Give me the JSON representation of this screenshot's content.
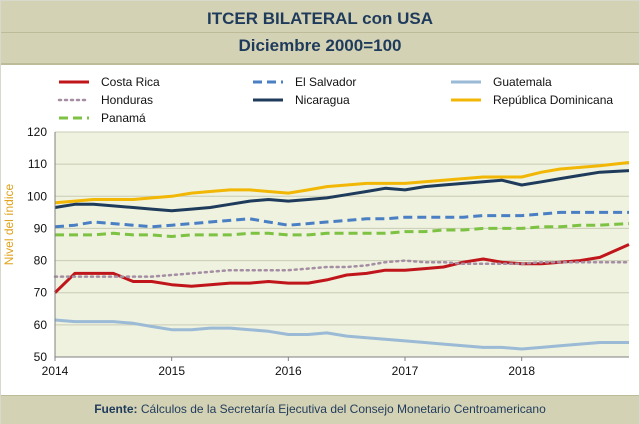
{
  "header": {
    "title": "ITCER BILATERAL con USA",
    "subtitle": "Diciembre 2000=100"
  },
  "footer": {
    "source_label": "Fuente:",
    "source_text": "Cálculos de la Secretaría Ejecutiva del Consejo Monetario Centroamericano"
  },
  "chart_data": {
    "type": "line",
    "title": "ITCER BILATERAL con USA",
    "subtitle": "Diciembre 2000=100",
    "ylabel": "Nivel del índice",
    "xlabel": "",
    "x_ticks": [
      "2014",
      "2015",
      "2016",
      "2017",
      "2018"
    ],
    "y_ticks": [
      50,
      60,
      70,
      80,
      90,
      100,
      110,
      120
    ],
    "ylim": [
      50,
      120
    ],
    "xlim": [
      2014.0,
      2018.92
    ],
    "grid": "horizontal",
    "legend_position": "top",
    "x": [
      2014.0,
      2014.17,
      2014.33,
      2014.5,
      2014.67,
      2014.83,
      2015.0,
      2015.17,
      2015.33,
      2015.5,
      2015.67,
      2015.83,
      2016.0,
      2016.17,
      2016.33,
      2016.5,
      2016.67,
      2016.83,
      2017.0,
      2017.17,
      2017.33,
      2017.5,
      2017.67,
      2017.83,
      2018.0,
      2018.17,
      2018.33,
      2018.5,
      2018.67,
      2018.92
    ],
    "series": [
      {
        "name": "Costa Rica",
        "color": "#c0161b",
        "dash": "solid",
        "values": [
          70,
          76,
          76,
          76,
          73.5,
          73.5,
          72.5,
          72,
          72.5,
          73,
          73,
          73.5,
          73,
          73,
          74,
          75.5,
          76,
          77,
          77,
          77.5,
          78,
          79.5,
          80.5,
          79.5,
          79,
          79,
          79.5,
          80,
          81,
          85
        ]
      },
      {
        "name": "El Salvador",
        "color": "#4a7fc4",
        "dash": "dashed",
        "values": [
          90.5,
          91,
          92,
          91.5,
          91,
          90.5,
          91,
          91.5,
          92,
          92.5,
          93,
          92,
          91,
          91.5,
          92,
          92.5,
          93,
          93,
          93.5,
          93.5,
          93.5,
          93.5,
          94,
          94,
          94,
          94.5,
          95,
          95,
          95,
          95
        ]
      },
      {
        "name": "Guatemala",
        "color": "#9bbad6",
        "dash": "solid",
        "values": [
          61.5,
          61,
          61,
          61,
          60.5,
          59.5,
          58.5,
          58.5,
          59,
          59,
          58.5,
          58,
          57,
          57,
          57.5,
          56.5,
          56,
          55.5,
          55,
          54.5,
          54,
          53.5,
          53,
          53,
          52.5,
          53,
          53.5,
          54,
          54.5,
          54.5
        ]
      },
      {
        "name": "Honduras",
        "color": "#a58ea3",
        "dash": "dotted",
        "values": [
          75,
          75,
          75,
          75,
          75,
          75,
          75.5,
          76,
          76.5,
          77,
          77,
          77,
          77,
          77.5,
          78,
          78,
          78.5,
          79.5,
          80,
          79.5,
          79.5,
          79,
          79,
          79,
          79,
          79.5,
          79.5,
          79.5,
          79.5,
          79.5
        ]
      },
      {
        "name": "Nicaragua",
        "color": "#1f3b5c",
        "dash": "solid",
        "values": [
          96.5,
          97.5,
          97.5,
          97,
          96.5,
          96,
          95.5,
          96,
          96.5,
          97.5,
          98.5,
          99,
          98.5,
          99,
          99.5,
          100.5,
          101.5,
          102.5,
          102,
          103,
          103.5,
          104,
          104.5,
          105,
          103.5,
          104.5,
          105.5,
          106.5,
          107.5,
          108
        ]
      },
      {
        "name": "República Dominicana",
        "color": "#f2b705",
        "dash": "solid",
        "values": [
          98,
          98.5,
          99,
          99,
          99,
          99.5,
          100,
          101,
          101.5,
          102,
          102,
          101.5,
          101,
          102,
          103,
          103.5,
          104,
          104,
          104,
          104.5,
          105,
          105.5,
          106,
          106,
          106,
          107.5,
          108.5,
          109,
          109.5,
          110.5
        ]
      },
      {
        "name": "Panamá",
        "color": "#7dc242",
        "dash": "dashed",
        "values": [
          88,
          88,
          88,
          88.5,
          88,
          88,
          87.5,
          88,
          88,
          88,
          88.5,
          88.5,
          88,
          88,
          88.5,
          88.5,
          88.5,
          88.5,
          89,
          89,
          89.5,
          89.5,
          90,
          90,
          90,
          90.5,
          90.5,
          91,
          91,
          91.5
        ]
      }
    ]
  }
}
